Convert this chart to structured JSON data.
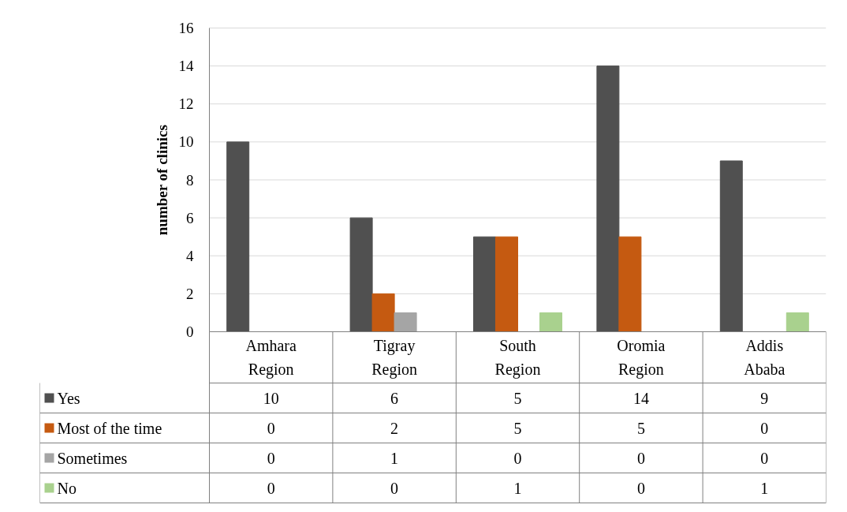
{
  "chart_data": {
    "type": "bar",
    "ylabel": "number of clinics",
    "categories": [
      "Amhara Region",
      "Tigray Region",
      "South Region",
      "Oromia Region",
      "Addis Ababa"
    ],
    "series": [
      {
        "name": "Yes",
        "color": "#505050",
        "values": [
          10,
          6,
          5,
          14,
          9
        ]
      },
      {
        "name": "Most of the time",
        "color": "#c55a11",
        "values": [
          0,
          2,
          5,
          5,
          0
        ]
      },
      {
        "name": "Sometimes",
        "color": "#a5a5a5",
        "values": [
          0,
          1,
          0,
          0,
          0
        ]
      },
      {
        "name": "No",
        "color": "#a9d18e",
        "values": [
          0,
          0,
          1,
          0,
          1
        ]
      }
    ],
    "ylim": [
      0,
      16
    ],
    "yticks": [
      0,
      2,
      4,
      6,
      8,
      10,
      12,
      14,
      16
    ],
    "grid": "y",
    "legend": "bottom",
    "data_labels": true
  }
}
